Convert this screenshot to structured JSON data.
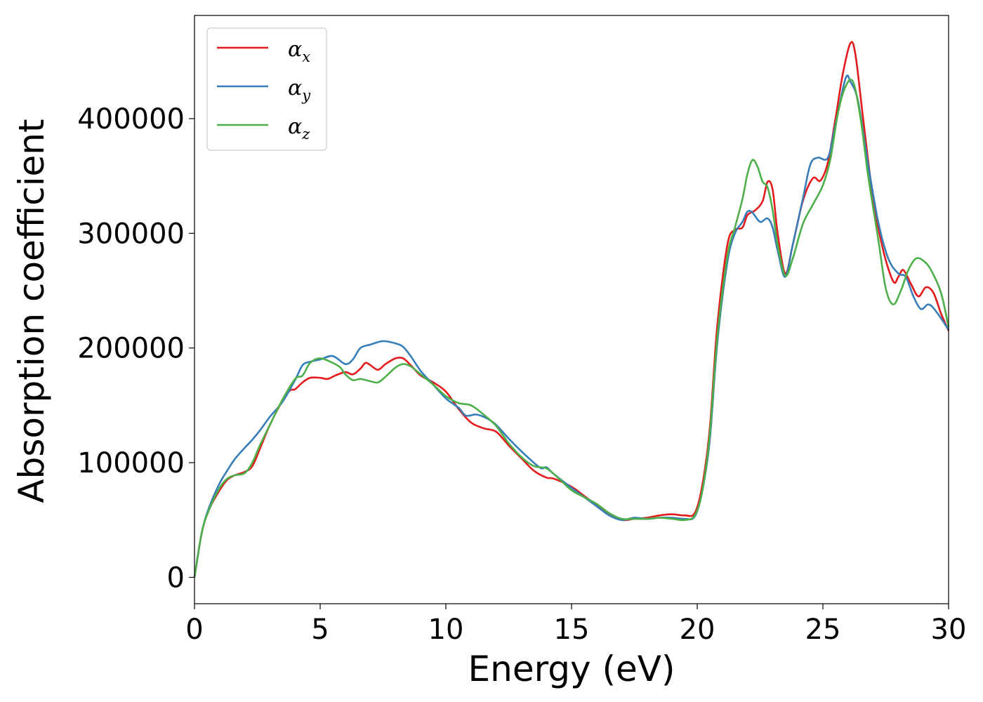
{
  "chart_data": {
    "type": "line",
    "xlabel": "Energy (eV)",
    "ylabel": "Absorption coefficient",
    "xlim": [
      0,
      30
    ],
    "ylim": [
      -23000,
      490000
    ],
    "x_ticks": [
      0,
      5,
      10,
      15,
      20,
      25,
      30
    ],
    "x_tick_labels": [
      "0",
      "5",
      "10",
      "15",
      "20",
      "25",
      "30"
    ],
    "y_ticks": [
      0,
      100000,
      200000,
      300000,
      400000
    ],
    "y_tick_labels": [
      "0",
      "100000",
      "200000",
      "300000",
      "400000"
    ],
    "grid": false,
    "legend_position": "top-left",
    "series": [
      {
        "name": "α",
        "subscript": "x",
        "color": "#e41a1c",
        "points": [
          [
            0,
            0
          ],
          [
            0.3,
            40000
          ],
          [
            0.6,
            60000
          ],
          [
            1.0,
            76000
          ],
          [
            1.3,
            85000
          ],
          [
            1.6,
            89000
          ],
          [
            2.0,
            92000
          ],
          [
            2.3,
            97000
          ],
          [
            2.6,
            112000
          ],
          [
            3.0,
            133000
          ],
          [
            3.5,
            154000
          ],
          [
            3.8,
            163000
          ],
          [
            4.0,
            164000
          ],
          [
            4.3,
            170000
          ],
          [
            4.6,
            174000
          ],
          [
            5.0,
            174000
          ],
          [
            5.3,
            173000
          ],
          [
            5.6,
            176000
          ],
          [
            6.0,
            179000
          ],
          [
            6.3,
            177000
          ],
          [
            6.6,
            182000
          ],
          [
            6.8,
            187000
          ],
          [
            7.0,
            185000
          ],
          [
            7.3,
            181000
          ],
          [
            7.6,
            186000
          ],
          [
            8.0,
            191000
          ],
          [
            8.3,
            191000
          ],
          [
            8.6,
            185000
          ],
          [
            9.0,
            176000
          ],
          [
            9.5,
            170000
          ],
          [
            10.0,
            162000
          ],
          [
            10.5,
            147000
          ],
          [
            11.0,
            135000
          ],
          [
            11.5,
            130000
          ],
          [
            12.0,
            127000
          ],
          [
            12.5,
            115000
          ],
          [
            13.0,
            104000
          ],
          [
            13.5,
            93000
          ],
          [
            14.0,
            87000
          ],
          [
            14.3,
            86000
          ],
          [
            15.0,
            79000
          ],
          [
            15.5,
            71000
          ],
          [
            16.0,
            63000
          ],
          [
            16.5,
            55000
          ],
          [
            17.0,
            50000
          ],
          [
            17.5,
            51000
          ],
          [
            18.0,
            52000
          ],
          [
            18.5,
            54000
          ],
          [
            19.0,
            55000
          ],
          [
            19.5,
            54000
          ],
          [
            19.9,
            56000
          ],
          [
            20.2,
            80000
          ],
          [
            20.5,
            130000
          ],
          [
            20.8,
            220000
          ],
          [
            21.2,
            290000
          ],
          [
            21.5,
            303000
          ],
          [
            21.8,
            305000
          ],
          [
            22.0,
            316000
          ],
          [
            22.3,
            320000
          ],
          [
            22.6,
            328000
          ],
          [
            22.8,
            345000
          ],
          [
            23.0,
            338000
          ],
          [
            23.2,
            300000
          ],
          [
            23.5,
            265000
          ],
          [
            23.8,
            290000
          ],
          [
            24.2,
            328000
          ],
          [
            24.6,
            348000
          ],
          [
            24.9,
            346000
          ],
          [
            25.2,
            362000
          ],
          [
            25.5,
            400000
          ],
          [
            25.8,
            440000
          ],
          [
            26.1,
            466000
          ],
          [
            26.3,
            455000
          ],
          [
            26.6,
            400000
          ],
          [
            27.0,
            330000
          ],
          [
            27.4,
            285000
          ],
          [
            27.8,
            258000
          ],
          [
            28.0,
            262000
          ],
          [
            28.2,
            268000
          ],
          [
            28.5,
            256000
          ],
          [
            28.8,
            245000
          ],
          [
            29.1,
            253000
          ],
          [
            29.4,
            248000
          ],
          [
            29.7,
            230000
          ],
          [
            30.0,
            215000
          ]
        ]
      },
      {
        "name": "α",
        "subscript": "y",
        "color": "#377eb8",
        "points": [
          [
            0,
            0
          ],
          [
            0.3,
            40000
          ],
          [
            0.6,
            62000
          ],
          [
            1.0,
            82000
          ],
          [
            1.3,
            93000
          ],
          [
            1.6,
            103000
          ],
          [
            2.0,
            113000
          ],
          [
            2.3,
            120000
          ],
          [
            2.6,
            128000
          ],
          [
            3.0,
            140000
          ],
          [
            3.5,
            153000
          ],
          [
            4.0,
            172000
          ],
          [
            4.3,
            185000
          ],
          [
            4.6,
            188000
          ],
          [
            5.0,
            190000
          ],
          [
            5.5,
            193000
          ],
          [
            6.0,
            186000
          ],
          [
            6.3,
            190000
          ],
          [
            6.6,
            200000
          ],
          [
            7.0,
            203000
          ],
          [
            7.5,
            206000
          ],
          [
            8.0,
            204000
          ],
          [
            8.3,
            201000
          ],
          [
            8.6,
            193000
          ],
          [
            9.0,
            180000
          ],
          [
            9.5,
            168000
          ],
          [
            10.0,
            156000
          ],
          [
            10.5,
            148000
          ],
          [
            10.8,
            141000
          ],
          [
            11.2,
            142000
          ],
          [
            11.6,
            139000
          ],
          [
            12.0,
            133000
          ],
          [
            12.5,
            121000
          ],
          [
            13.0,
            110000
          ],
          [
            13.5,
            100000
          ],
          [
            13.8,
            95000
          ],
          [
            14.0,
            96000
          ],
          [
            14.3,
            90000
          ],
          [
            15.0,
            78000
          ],
          [
            15.5,
            70000
          ],
          [
            16.0,
            62000
          ],
          [
            16.5,
            54000
          ],
          [
            17.0,
            50000
          ],
          [
            17.5,
            52000
          ],
          [
            18.0,
            51000
          ],
          [
            18.5,
            52000
          ],
          [
            19.0,
            52000
          ],
          [
            19.5,
            51000
          ],
          [
            19.9,
            53000
          ],
          [
            20.2,
            75000
          ],
          [
            20.5,
            120000
          ],
          [
            20.8,
            205000
          ],
          [
            21.2,
            275000
          ],
          [
            21.5,
            300000
          ],
          [
            21.8,
            310000
          ],
          [
            22.0,
            319000
          ],
          [
            22.2,
            318000
          ],
          [
            22.5,
            310000
          ],
          [
            22.8,
            313000
          ],
          [
            23.0,
            305000
          ],
          [
            23.2,
            285000
          ],
          [
            23.5,
            262000
          ],
          [
            23.8,
            290000
          ],
          [
            24.2,
            330000
          ],
          [
            24.5,
            360000
          ],
          [
            24.8,
            366000
          ],
          [
            25.2,
            366000
          ],
          [
            25.5,
            395000
          ],
          [
            25.9,
            435000
          ],
          [
            26.1,
            432000
          ],
          [
            26.4,
            415000
          ],
          [
            26.8,
            360000
          ],
          [
            27.2,
            310000
          ],
          [
            27.6,
            278000
          ],
          [
            28.0,
            265000
          ],
          [
            28.3,
            262000
          ],
          [
            28.6,
            245000
          ],
          [
            28.9,
            234000
          ],
          [
            29.2,
            238000
          ],
          [
            29.5,
            232000
          ],
          [
            30.0,
            216000
          ]
        ]
      },
      {
        "name": "α",
        "subscript": "z",
        "color": "#4daf4a",
        "points": [
          [
            0,
            0
          ],
          [
            0.3,
            40000
          ],
          [
            0.6,
            60000
          ],
          [
            1.0,
            78000
          ],
          [
            1.3,
            86000
          ],
          [
            1.6,
            89000
          ],
          [
            2.0,
            91000
          ],
          [
            2.3,
            100000
          ],
          [
            2.6,
            115000
          ],
          [
            3.0,
            133000
          ],
          [
            3.5,
            155000
          ],
          [
            4.0,
            173000
          ],
          [
            4.3,
            176000
          ],
          [
            4.6,
            187000
          ],
          [
            5.0,
            191000
          ],
          [
            5.5,
            187000
          ],
          [
            5.8,
            183000
          ],
          [
            6.0,
            177000
          ],
          [
            6.3,
            172000
          ],
          [
            6.6,
            173000
          ],
          [
            7.0,
            171000
          ],
          [
            7.3,
            170000
          ],
          [
            7.6,
            175000
          ],
          [
            8.0,
            183000
          ],
          [
            8.3,
            186000
          ],
          [
            8.6,
            184000
          ],
          [
            9.0,
            177000
          ],
          [
            9.5,
            168000
          ],
          [
            10.0,
            158000
          ],
          [
            10.5,
            152000
          ],
          [
            11.0,
            150000
          ],
          [
            11.5,
            142000
          ],
          [
            12.0,
            132000
          ],
          [
            12.5,
            117000
          ],
          [
            13.0,
            105000
          ],
          [
            13.5,
            97000
          ],
          [
            14.0,
            95000
          ],
          [
            14.5,
            86000
          ],
          [
            15.0,
            76000
          ],
          [
            15.5,
            70000
          ],
          [
            16.0,
            64000
          ],
          [
            16.5,
            56000
          ],
          [
            17.0,
            51000
          ],
          [
            17.5,
            51000
          ],
          [
            18.0,
            51000
          ],
          [
            18.5,
            52000
          ],
          [
            19.0,
            51000
          ],
          [
            19.5,
            50000
          ],
          [
            19.9,
            54000
          ],
          [
            20.2,
            75000
          ],
          [
            20.5,
            125000
          ],
          [
            20.8,
            210000
          ],
          [
            21.2,
            280000
          ],
          [
            21.5,
            305000
          ],
          [
            21.8,
            330000
          ],
          [
            22.0,
            352000
          ],
          [
            22.2,
            364000
          ],
          [
            22.4,
            358000
          ],
          [
            22.6,
            345000
          ],
          [
            22.8,
            340000
          ],
          [
            23.0,
            320000
          ],
          [
            23.2,
            290000
          ],
          [
            23.5,
            263000
          ],
          [
            23.8,
            278000
          ],
          [
            24.2,
            308000
          ],
          [
            24.6,
            325000
          ],
          [
            25.0,
            342000
          ],
          [
            25.3,
            365000
          ],
          [
            25.6,
            405000
          ],
          [
            25.9,
            428000
          ],
          [
            26.2,
            432000
          ],
          [
            26.5,
            400000
          ],
          [
            26.8,
            350000
          ],
          [
            27.2,
            295000
          ],
          [
            27.5,
            252000
          ],
          [
            27.8,
            238000
          ],
          [
            28.1,
            250000
          ],
          [
            28.4,
            268000
          ],
          [
            28.7,
            278000
          ],
          [
            29.0,
            276000
          ],
          [
            29.3,
            268000
          ],
          [
            29.7,
            248000
          ],
          [
            30.0,
            218000
          ]
        ]
      }
    ]
  }
}
